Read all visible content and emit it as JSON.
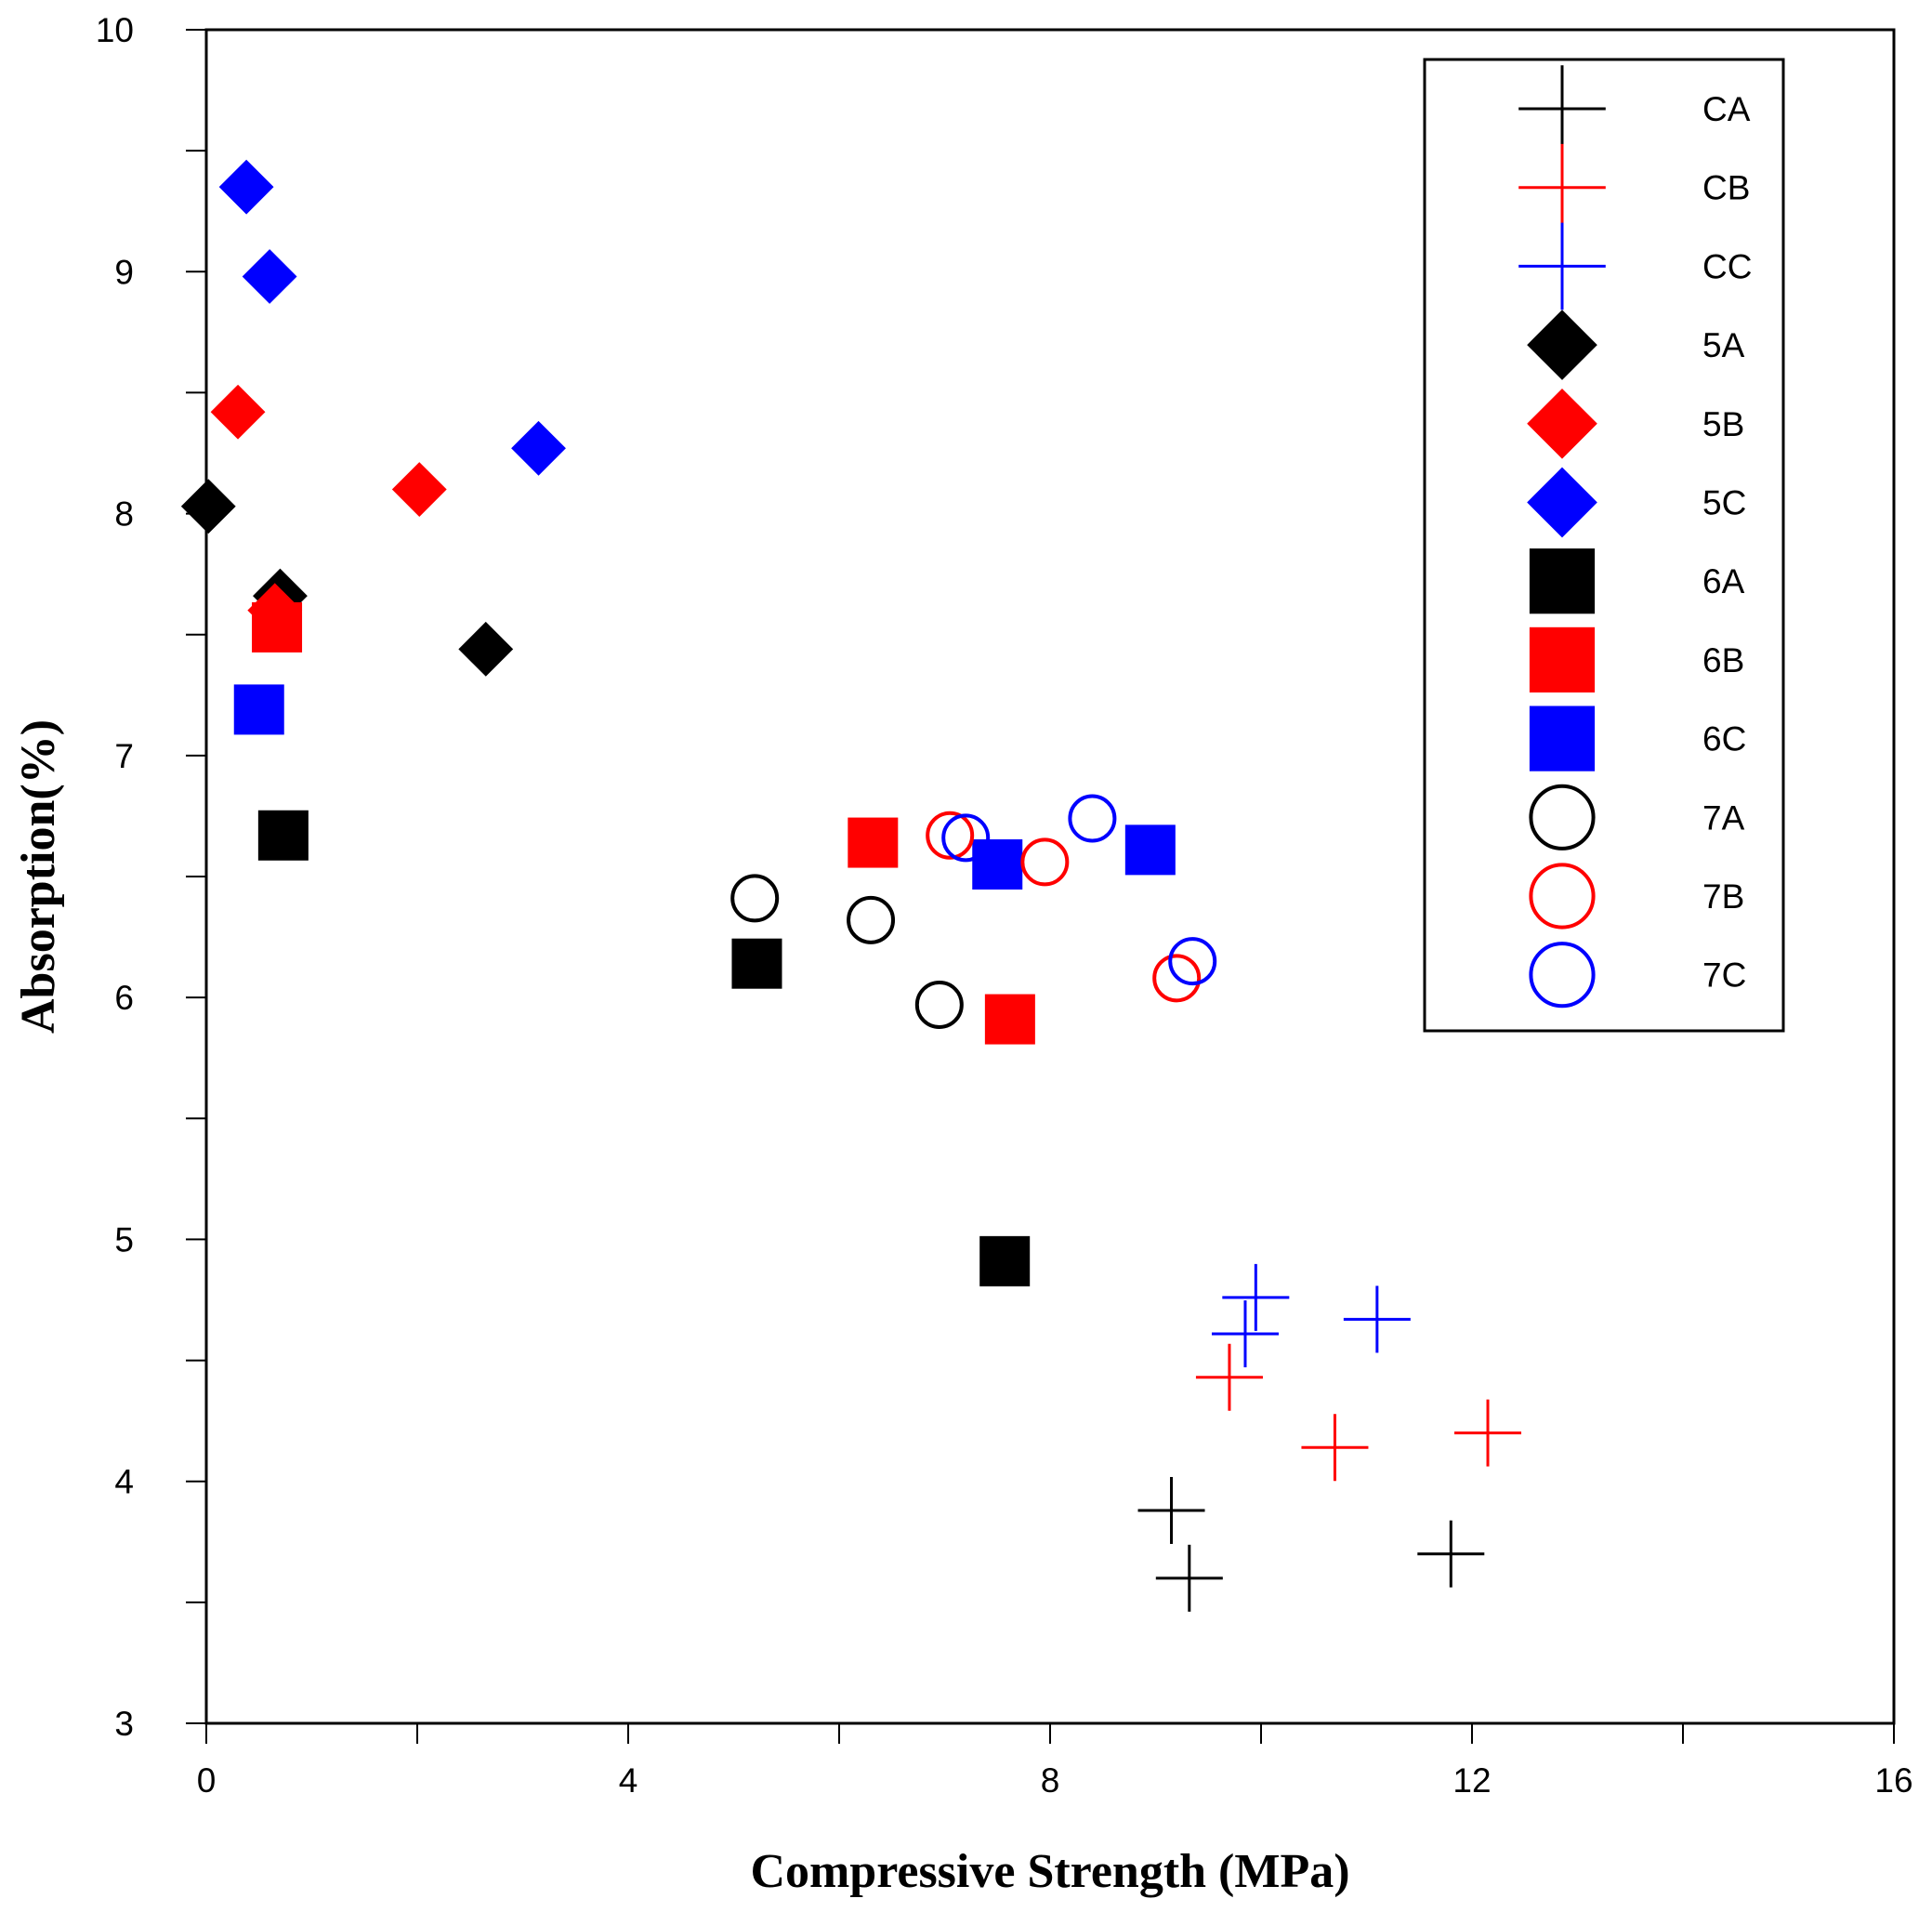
{
  "chart_data": {
    "type": "scatter",
    "title": "",
    "xlabel": "Compressive Strength (MPa)",
    "ylabel": "Absorption(%)",
    "xlim": [
      0,
      16
    ],
    "ylim": [
      3,
      10
    ],
    "x_ticks": [
      0,
      4,
      8,
      12,
      16
    ],
    "x_minor_ticks": [
      2,
      6,
      10,
      14
    ],
    "y_ticks": [
      3,
      4,
      5,
      6,
      7,
      8,
      9,
      10
    ],
    "y_minor_ticks": [
      3.5,
      4.5,
      5.5,
      6.5,
      7.5,
      8.5,
      9.5
    ],
    "legend_position": "top-right",
    "series": [
      {
        "name": "CA",
        "marker": "plus",
        "color": "#000000",
        "points": [
          [
            9.15,
            3.88
          ],
          [
            9.32,
            3.6
          ],
          [
            11.8,
            3.7
          ]
        ]
      },
      {
        "name": "CB",
        "marker": "plus",
        "color": "#ff0000",
        "points": [
          [
            9.7,
            4.43
          ],
          [
            10.7,
            4.14
          ],
          [
            12.15,
            4.2
          ]
        ]
      },
      {
        "name": "CC",
        "marker": "plus",
        "color": "#0000ff",
        "points": [
          [
            9.95,
            4.76
          ],
          [
            9.85,
            4.61
          ],
          [
            11.1,
            4.67
          ]
        ]
      },
      {
        "name": "5A",
        "marker": "diamond",
        "color": "#000000",
        "points": [
          [
            0.02,
            8.03
          ],
          [
            0.7,
            7.66
          ],
          [
            2.65,
            7.44
          ]
        ]
      },
      {
        "name": "5B",
        "marker": "diamond",
        "color": "#ff0000",
        "points": [
          [
            0.3,
            8.42
          ],
          [
            2.02,
            8.1
          ],
          [
            0.65,
            7.6
          ]
        ]
      },
      {
        "name": "5C",
        "marker": "diamond",
        "color": "#0000ff",
        "points": [
          [
            0.38,
            9.35
          ],
          [
            0.6,
            8.98
          ],
          [
            3.15,
            8.27
          ]
        ]
      },
      {
        "name": "6A",
        "marker": "square",
        "color": "#000000",
        "points": [
          [
            0.73,
            6.67
          ],
          [
            5.22,
            6.14
          ],
          [
            7.57,
            4.91
          ]
        ]
      },
      {
        "name": "6B",
        "marker": "square",
        "color": "#ff0000",
        "points": [
          [
            0.67,
            7.53
          ],
          [
            6.32,
            6.64
          ],
          [
            7.62,
            5.91
          ]
        ]
      },
      {
        "name": "6C",
        "marker": "square",
        "color": "#0000ff",
        "points": [
          [
            0.5,
            7.19
          ],
          [
            7.5,
            6.55
          ],
          [
            8.95,
            6.61
          ]
        ]
      },
      {
        "name": "7A",
        "marker": "circle",
        "color": "#000000",
        "points": [
          [
            5.2,
            6.41
          ],
          [
            6.3,
            6.32
          ],
          [
            6.95,
            5.97
          ]
        ]
      },
      {
        "name": "7B",
        "marker": "circle",
        "color": "#ff0000",
        "points": [
          [
            7.05,
            6.67
          ],
          [
            7.95,
            6.56
          ],
          [
            9.2,
            6.08
          ]
        ]
      },
      {
        "name": "7C",
        "marker": "circle",
        "color": "#0000ff",
        "points": [
          [
            7.2,
            6.66
          ],
          [
            8.4,
            6.74
          ],
          [
            9.35,
            6.15
          ]
        ]
      }
    ]
  }
}
